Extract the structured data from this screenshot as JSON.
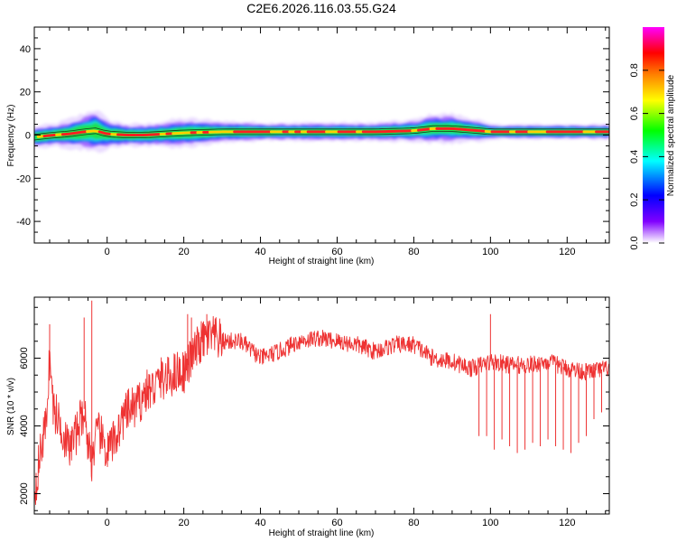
{
  "title": "C2E6.2026.116.03.55.G24",
  "chart_data": [
    {
      "type": "heatmap",
      "panel": "spectrogram",
      "xlabel": "Height of straight line (km)",
      "ylabel": "Frequency (Hz)",
      "xlim": [
        -19,
        131
      ],
      "ylim": [
        -50,
        50
      ],
      "x_ticks": [
        "0",
        "20",
        "40",
        "60",
        "80",
        "100",
        "120"
      ],
      "y_ticks": [
        "40",
        "20",
        "0",
        "-20",
        "-40"
      ],
      "colorbar": {
        "label": "Normalized spectral amplitude",
        "range": [
          0.0,
          1.0
        ],
        "ticks": [
          "0.0",
          "0.2",
          "0.4",
          "0.6",
          "0.8"
        ],
        "colors": [
          "#ffffff",
          "#8000ff",
          "#0000ff",
          "#00ffff",
          "#00ff00",
          "#ffff00",
          "#ff8000",
          "#ff0000",
          "#ff00ff"
        ]
      },
      "ridge": {
        "description": "dominant frequency vs height",
        "x": [
          -19,
          -14,
          -10,
          -6,
          -3,
          0,
          5,
          10,
          20,
          30,
          40,
          50,
          60,
          70,
          80,
          85,
          90,
          97,
          100,
          110,
          120,
          131
        ],
        "y": [
          -1,
          0,
          0.5,
          1.5,
          2,
          0.5,
          0,
          0,
          1,
          1.5,
          1.5,
          1.5,
          1.5,
          1.5,
          2,
          3,
          3,
          2,
          1.5,
          1.5,
          1.5,
          1.5
        ],
        "bandwidth_hz": [
          3,
          3,
          4,
          5,
          6,
          4,
          3,
          3,
          4,
          3,
          2.5,
          2.5,
          2.5,
          2.5,
          3,
          4,
          4,
          3,
          2,
          2,
          2,
          2
        ]
      }
    },
    {
      "type": "line",
      "panel": "snr",
      "xlabel": "Height of straight line (km)",
      "ylabel": "SNR (10 * v/v)",
      "xlim": [
        -19,
        131
      ],
      "ylim": [
        1400,
        7800
      ],
      "x_ticks": [
        "0",
        "20",
        "40",
        "60",
        "80",
        "100",
        "120"
      ],
      "y_ticks": [
        "2000",
        "4000",
        "6000"
      ],
      "color": "#ee3333",
      "series": [
        {
          "name": "SNR",
          "x": [
            -19,
            -17,
            -16,
            -15,
            -14,
            -12,
            -10,
            -8,
            -6,
            -5,
            -4,
            -3,
            -2,
            0,
            2,
            4,
            6,
            8,
            10,
            12,
            14,
            16,
            18,
            20,
            22,
            24,
            26,
            28,
            30,
            35,
            40,
            45,
            50,
            55,
            60,
            65,
            70,
            75,
            80,
            85,
            90,
            95,
            100,
            105,
            110,
            115,
            120,
            125,
            131
          ],
          "y": [
            2000,
            3500,
            4000,
            6000,
            4500,
            4000,
            3300,
            3800,
            4500,
            3500,
            3000,
            3600,
            3800,
            3200,
            3600,
            4200,
            4500,
            4600,
            5000,
            5100,
            5400,
            5400,
            5600,
            5600,
            6000,
            6400,
            6600,
            6600,
            6500,
            6500,
            6000,
            6200,
            6500,
            6600,
            6500,
            6400,
            6200,
            6400,
            6400,
            6000,
            5900,
            5700,
            5900,
            5800,
            5800,
            5900,
            5700,
            5600,
            5700
          ]
        }
      ],
      "spikes_down": {
        "x": [
          97,
          99,
          101,
          103,
          105,
          107,
          109,
          111,
          113,
          115,
          117,
          119,
          121,
          123,
          125,
          127,
          129
        ],
        "y": [
          3700,
          3700,
          3300,
          3600,
          3400,
          3200,
          3300,
          3500,
          3400,
          3600,
          3400,
          3300,
          3200,
          3500,
          3700,
          4200,
          4400
        ]
      },
      "spikes_up": {
        "x": [
          -15,
          -6,
          -4,
          21,
          22,
          26,
          100
        ],
        "y": [
          7000,
          7200,
          7700,
          7300,
          7200,
          7300,
          7300
        ]
      }
    }
  ]
}
